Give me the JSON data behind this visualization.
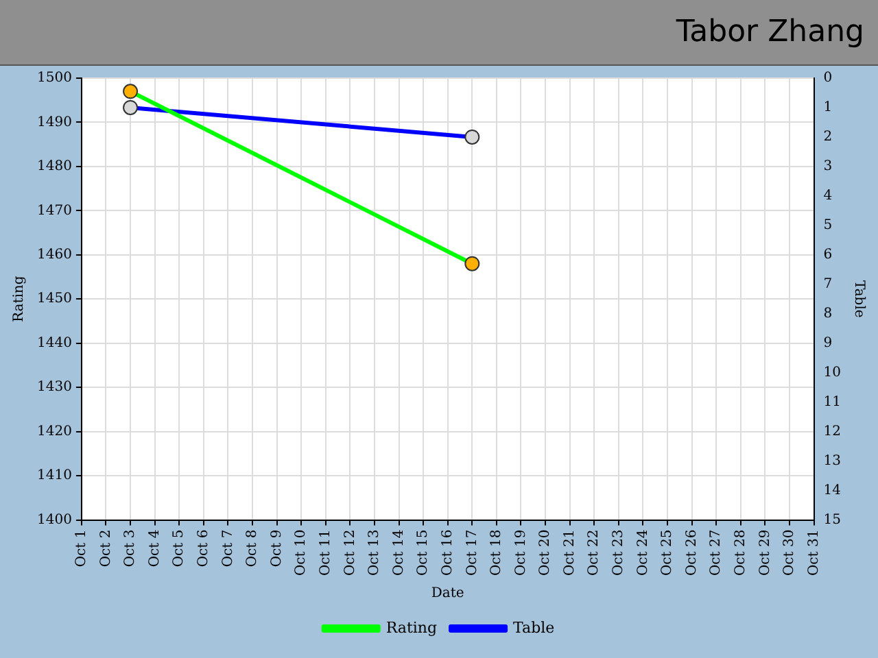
{
  "chart_data": {
    "type": "line",
    "title": "Tabor Zhang",
    "xlabel": "Date",
    "ylabel": "Rating",
    "y2label": "Table",
    "categories": [
      "Oct 1",
      "Oct 2",
      "Oct 3",
      "Oct 4",
      "Oct 5",
      "Oct 6",
      "Oct 7",
      "Oct 8",
      "Oct 9",
      "Oct 10",
      "Oct 11",
      "Oct 12",
      "Oct 13",
      "Oct 14",
      "Oct 15",
      "Oct 16",
      "Oct 17",
      "Oct 18",
      "Oct 19",
      "Oct 20",
      "Oct 21",
      "Oct 22",
      "Oct 23",
      "Oct 24",
      "Oct 25",
      "Oct 26",
      "Oct 27",
      "Oct 28",
      "Oct 29",
      "Oct 30",
      "Oct 31"
    ],
    "series": [
      {
        "name": "Rating",
        "color": "#00ff00",
        "values": [
          null,
          null,
          1497,
          null,
          null,
          null,
          null,
          null,
          null,
          null,
          null,
          null,
          null,
          null,
          null,
          null,
          1458,
          null,
          null,
          null,
          null,
          null,
          null,
          null,
          null,
          null,
          null,
          null,
          null,
          null,
          null
        ]
      },
      {
        "name": "Table",
        "color": "#0000ff",
        "axis": "y2",
        "values": [
          null,
          null,
          1,
          null,
          null,
          null,
          null,
          null,
          null,
          null,
          null,
          null,
          null,
          null,
          null,
          null,
          2,
          null,
          null,
          null,
          null,
          null,
          null,
          null,
          null,
          null,
          null,
          null,
          null,
          null,
          null
        ]
      }
    ],
    "ylim": [
      1400,
      1500
    ],
    "yticks": [
      1400,
      1410,
      1420,
      1430,
      1440,
      1450,
      1460,
      1470,
      1480,
      1490,
      1500
    ],
    "y2lim": [
      15,
      0
    ],
    "y2ticks": [
      0,
      1,
      2,
      3,
      4,
      5,
      6,
      7,
      8,
      9,
      10,
      11,
      12,
      13,
      14,
      15
    ],
    "grid": true,
    "legend": "bottom",
    "marker": "circle",
    "line_style": "solid"
  }
}
